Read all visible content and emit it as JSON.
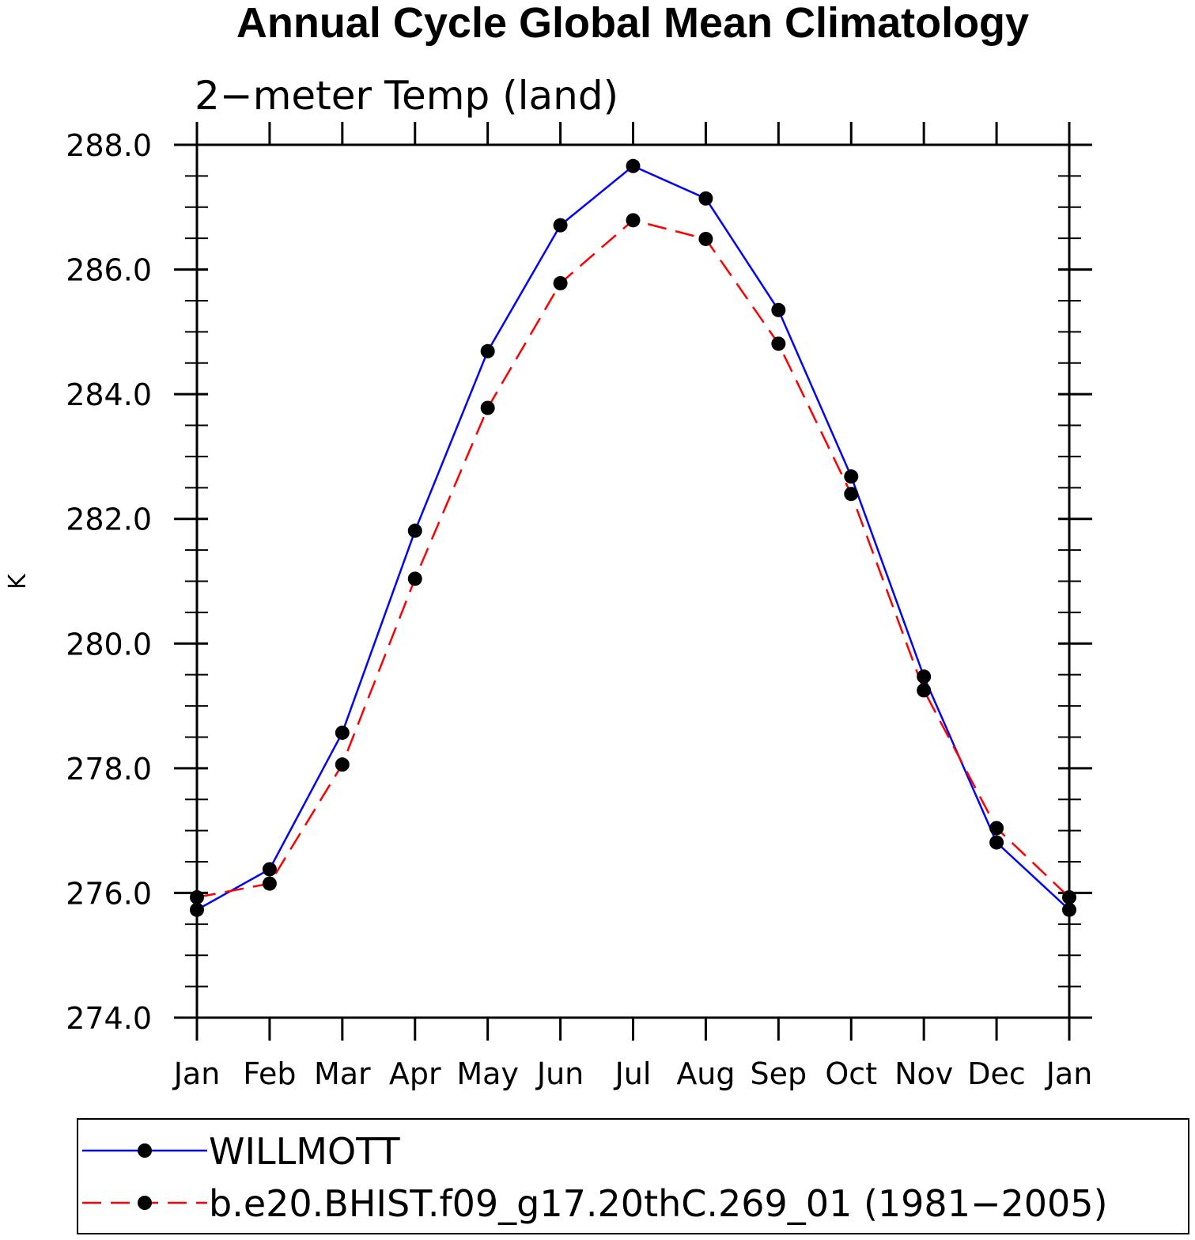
{
  "chart_data": {
    "type": "line",
    "title": "Annual Cycle Global Mean Climatology",
    "subtitle": "2−meter Temp (land)",
    "xlabel": "",
    "ylabel": "K",
    "categories": [
      "Jan",
      "Feb",
      "Mar",
      "Apr",
      "May",
      "Jun",
      "Jul",
      "Aug",
      "Sep",
      "Oct",
      "Nov",
      "Dec",
      "Jan"
    ],
    "ylim": [
      274.0,
      288.0
    ],
    "yticks": [
      "274.0",
      "276.0",
      "278.0",
      "280.0",
      "282.0",
      "284.0",
      "286.0",
      "288.0"
    ],
    "grid": false,
    "legend_position": "bottom",
    "series": [
      {
        "name": "WILLMOTT",
        "color": "#0000ff",
        "line_style": "solid",
        "marker": "filled-circle",
        "values": [
          275.73,
          276.38,
          278.57,
          281.81,
          284.69,
          286.71,
          287.66,
          287.14,
          285.35,
          282.68,
          279.47,
          276.81,
          275.73
        ]
      },
      {
        "name": "b.e20.BHIST.f09_g17.20thC.269_01 (1981−2005)",
        "color": "#ff0000",
        "line_style": "dashed",
        "marker": "filled-circle",
        "values": [
          275.93,
          276.15,
          278.06,
          281.04,
          283.78,
          285.78,
          286.79,
          286.49,
          284.81,
          282.4,
          279.25,
          277.04,
          275.93
        ]
      }
    ]
  }
}
